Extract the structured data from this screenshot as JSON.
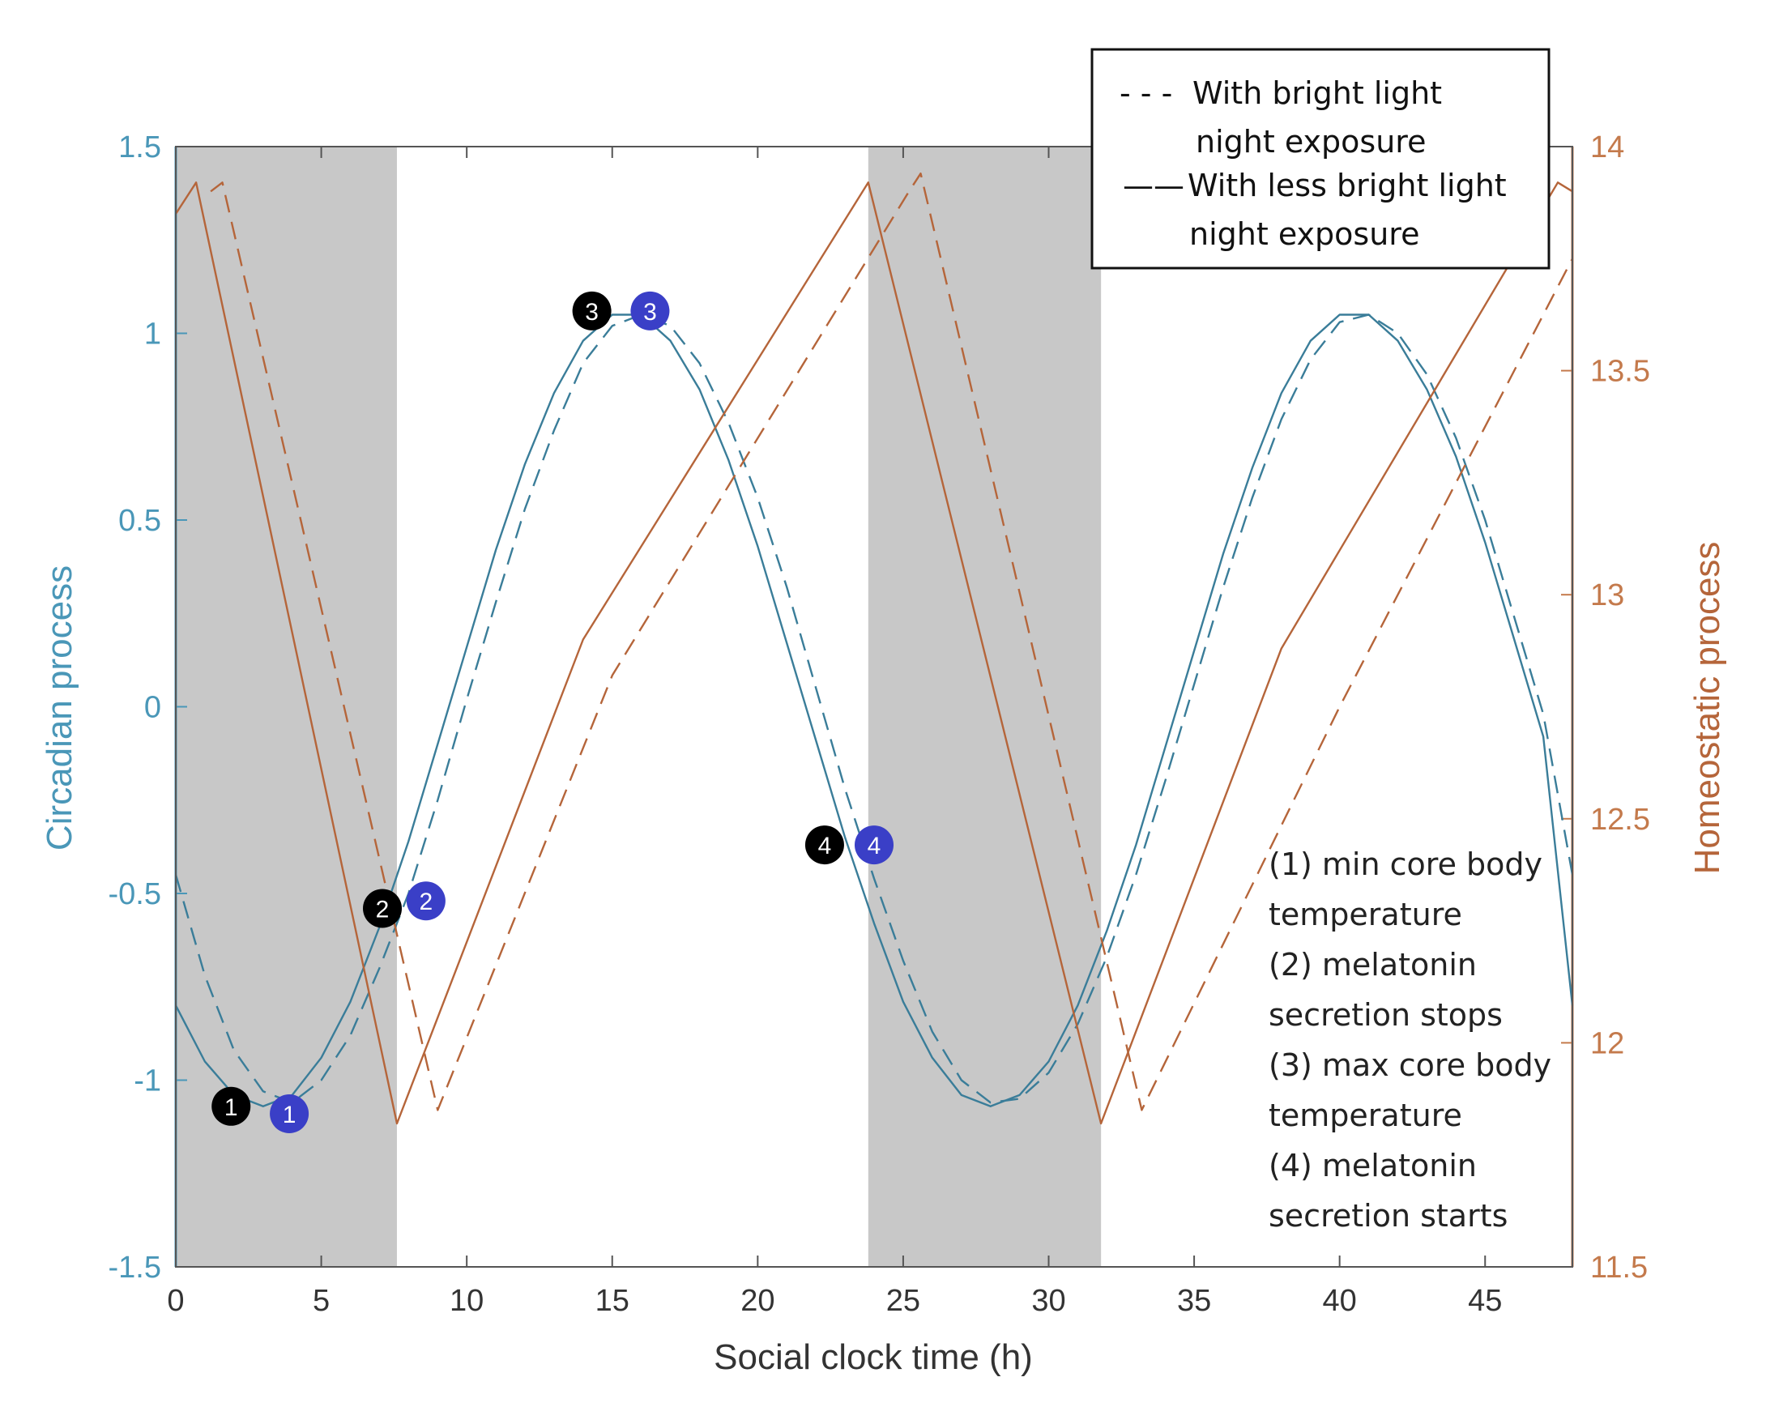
{
  "chart_data": {
    "type": "line",
    "title": "",
    "xlabel": "Social clock time (h)",
    "ylabel_left": "Circadian process",
    "ylabel_right": "Homeostatic process",
    "xlim": [
      0,
      48
    ],
    "ylim_left": [
      -1.5,
      1.5
    ],
    "ylim_right": [
      11.5,
      14
    ],
    "x_ticks": [
      0,
      5,
      10,
      15,
      20,
      25,
      30,
      35,
      40,
      45
    ],
    "x_tick_labels": [
      "0",
      "5",
      "10",
      "15",
      "20",
      "25",
      "30",
      "35",
      "40",
      "45"
    ],
    "y_left_ticks": [
      -1.5,
      -1,
      -0.5,
      0,
      0.5,
      1,
      1.5
    ],
    "y_left_tick_labels": [
      "-1.5",
      "-1",
      "-0.5",
      "0",
      "0.5",
      "1",
      "1.5"
    ],
    "y_right_ticks": [
      11.5,
      12,
      12.5,
      13,
      13.5,
      14
    ],
    "y_right_tick_labels": [
      "11.5",
      "12",
      "12.5",
      "13",
      "13.5",
      "14"
    ],
    "night_periods": [
      [
        0,
        7.6
      ],
      [
        23.8,
        31.8
      ]
    ],
    "colors": {
      "circadian": "#3a7d99",
      "homeostatic": "#b5653a",
      "left_axis": "#4a97b8",
      "right_axis": "#c47a4c",
      "night_shade": "#c8c8c8",
      "marker_less": "#000000",
      "marker_bright": "#3a3fc7"
    },
    "series": [
      {
        "name": "Circadian process - with less bright light night exposure",
        "axis": "left",
        "style": "solid",
        "x": [
          0,
          1,
          2,
          3,
          4,
          5,
          6,
          7,
          8,
          9,
          10,
          11,
          12,
          13,
          14,
          15,
          16,
          17,
          18,
          19,
          20,
          21,
          22,
          23,
          24,
          25,
          26,
          27,
          28,
          29,
          30,
          31,
          32,
          33,
          34,
          35,
          36,
          37,
          38,
          39,
          40,
          41,
          42,
          43,
          44,
          45,
          46,
          47,
          48
        ],
        "y": [
          -0.8,
          -0.95,
          -1.04,
          -1.07,
          -1.04,
          -0.94,
          -0.79,
          -0.59,
          -0.36,
          -0.1,
          0.16,
          0.42,
          0.65,
          0.84,
          0.98,
          1.05,
          1.05,
          0.98,
          0.85,
          0.66,
          0.43,
          0.17,
          -0.09,
          -0.35,
          -0.58,
          -0.79,
          -0.94,
          -1.04,
          -1.07,
          -1.04,
          -0.95,
          -0.8,
          -0.6,
          -0.37,
          -0.11,
          0.15,
          0.41,
          0.64,
          0.84,
          0.98,
          1.05,
          1.05,
          0.98,
          0.85,
          0.67,
          0.44,
          0.18,
          -0.08,
          -0.8
        ]
      },
      {
        "name": "Circadian process - with bright light night exposure",
        "axis": "left",
        "style": "dashed",
        "x": [
          0,
          1,
          2,
          3,
          4,
          5,
          6,
          7,
          8,
          9,
          10,
          11,
          12,
          13,
          14,
          15,
          16,
          17,
          18,
          19,
          20,
          21,
          22,
          23,
          24,
          25,
          26,
          27,
          28,
          29,
          30,
          31,
          32,
          33,
          34,
          35,
          36,
          37,
          38,
          39,
          40,
          41,
          42,
          43,
          44,
          45,
          46,
          47,
          48
        ],
        "y": [
          -0.45,
          -0.72,
          -0.92,
          -1.03,
          -1.06,
          -1.0,
          -0.88,
          -0.7,
          -0.5,
          -0.25,
          0.02,
          0.28,
          0.53,
          0.74,
          0.92,
          1.02,
          1.05,
          1.02,
          0.92,
          0.76,
          0.56,
          0.32,
          0.05,
          -0.22,
          -0.46,
          -0.68,
          -0.87,
          -1.0,
          -1.06,
          -1.05,
          -0.98,
          -0.85,
          -0.67,
          -0.45,
          -0.2,
          0.06,
          0.32,
          0.56,
          0.77,
          0.93,
          1.03,
          1.05,
          1.0,
          0.89,
          0.72,
          0.5,
          0.24,
          -0.02,
          -0.45
        ]
      },
      {
        "name": "Homeostatic process - with less bright light night exposure",
        "axis": "right",
        "style": "solid",
        "x": [
          0,
          0.7,
          7.6,
          14,
          23.8,
          31.8,
          38,
          47.5,
          48
        ],
        "y": [
          13.85,
          13.92,
          11.82,
          12.9,
          13.92,
          11.82,
          12.88,
          13.92,
          13.9
        ]
      },
      {
        "name": "Homeostatic process - with bright light night exposure",
        "axis": "right",
        "style": "dashed",
        "x": [
          1.2,
          1.6,
          9.0,
          15,
          25.2,
          25.6,
          33.2,
          40,
          48
        ],
        "y": [
          13.9,
          13.92,
          11.85,
          12.82,
          13.9,
          13.94,
          11.85,
          12.75,
          13.75
        ]
      }
    ],
    "markers": [
      {
        "label": "1",
        "group": "less_bright",
        "x": 1.9,
        "y": -1.07
      },
      {
        "label": "1",
        "group": "bright",
        "x": 3.9,
        "y": -1.09
      },
      {
        "label": "2",
        "group": "less_bright",
        "x": 7.1,
        "y": -0.54
      },
      {
        "label": "2",
        "group": "bright",
        "x": 8.6,
        "y": -0.52
      },
      {
        "label": "3",
        "group": "less_bright",
        "x": 14.3,
        "y": 1.06
      },
      {
        "label": "3",
        "group": "bright",
        "x": 16.3,
        "y": 1.06
      },
      {
        "label": "4",
        "group": "less_bright",
        "x": 22.3,
        "y": -0.37
      },
      {
        "label": "4",
        "group": "bright",
        "x": 24.0,
        "y": -0.37
      }
    ],
    "legend": {
      "placement": "top-right",
      "entries": [
        {
          "glyph": "- - -",
          "lines": [
            "With bright light",
            "night exposure"
          ]
        },
        {
          "glyph": "——",
          "lines": [
            "With less bright light",
            "night exposure"
          ]
        }
      ]
    },
    "annotation": {
      "placement": "bottom-right",
      "lines": [
        "(1) min core body",
        "temperature",
        "(2) melatonin",
        "secretion stops",
        "(3) max core body",
        "temperature",
        "(4) melatonin",
        "secretion starts"
      ]
    }
  }
}
